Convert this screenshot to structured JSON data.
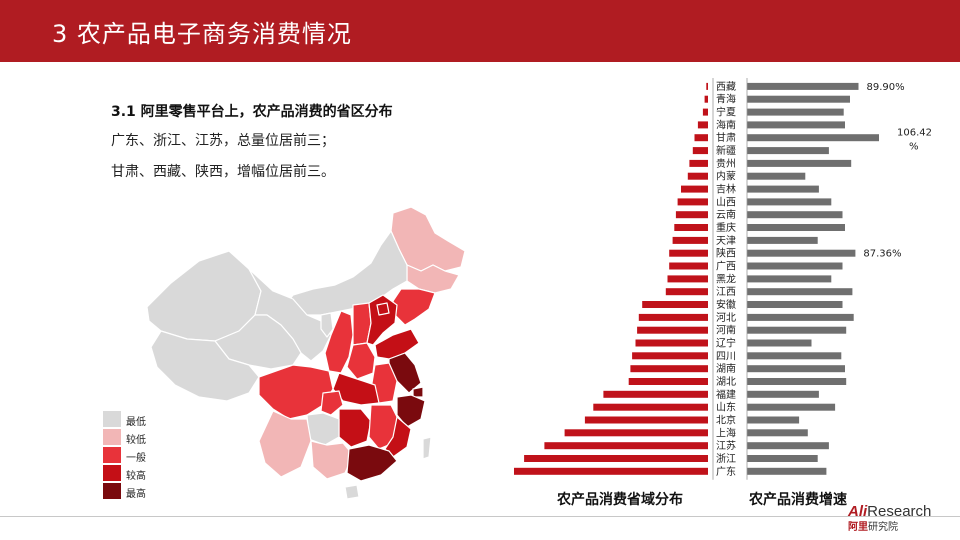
{
  "header": {
    "title": "3 农产品电子商务消费情况"
  },
  "intro": {
    "heading": "3.1 阿里零售平台上，农产品消费的省区分布",
    "line1": "广东、浙江、江苏，总量位居前三；",
    "line2": "甘肃、西藏、陕西，增幅位居前三。"
  },
  "legend": [
    {
      "label": "最低",
      "color": "#d9d9d9"
    },
    {
      "label": "较低",
      "color": "#f2b6b6"
    },
    {
      "label": "一般",
      "color": "#e8333a"
    },
    {
      "label": "较高",
      "color": "#c40f16"
    },
    {
      "label": "最高",
      "color": "#7a0a0e"
    }
  ],
  "colors": {
    "header": "#b01c22",
    "volume_bar": "#c0121a",
    "growth_bar": "#6f6f6f"
  },
  "chart_data": {
    "type": "bar",
    "categories": [
      "西藏",
      "青海",
      "宁夏",
      "海南",
      "甘肃",
      "新疆",
      "贵州",
      "内蒙",
      "吉林",
      "山西",
      "云南",
      "重庆",
      "天津",
      "陕西",
      "广西",
      "黑龙",
      "江西",
      "安徽",
      "河北",
      "河南",
      "辽宁",
      "四川",
      "湖南",
      "湖北",
      "福建",
      "山东",
      "北京",
      "上海",
      "江苏",
      "浙江",
      "广东"
    ],
    "series": [
      {
        "name": "农产品消费省域分布",
        "values": [
          1,
          2,
          3,
          6,
          8,
          9,
          11,
          12,
          16,
          18,
          19,
          20,
          21,
          23,
          23,
          24,
          25,
          39,
          41,
          42,
          43,
          45,
          46,
          47,
          62,
          68,
          73,
          85,
          97,
          109,
          115
        ]
      },
      {
        "name": "农产品消费增速",
        "values": [
          89.9,
          83,
          78,
          79,
          106.42,
          66,
          84,
          47,
          58,
          68,
          77,
          79,
          57,
          87.36,
          77,
          68,
          85,
          77,
          86,
          80,
          52,
          76,
          79,
          80,
          58,
          71,
          42,
          49,
          66,
          57,
          64
        ],
        "data_labels": [
          {
            "category": "西藏",
            "text": "89.90%"
          },
          {
            "category": "甘肃",
            "text": "106.42%"
          },
          {
            "category": "陕西",
            "text": "87.36%"
          }
        ]
      }
    ],
    "titles": [
      "农产品消费省域分布",
      "农产品消费增速"
    ]
  },
  "logo": {
    "brand_prefix": "Ali",
    "brand_suffix": "Research",
    "sub_prefix": "阿里",
    "sub_suffix": "研究院"
  }
}
